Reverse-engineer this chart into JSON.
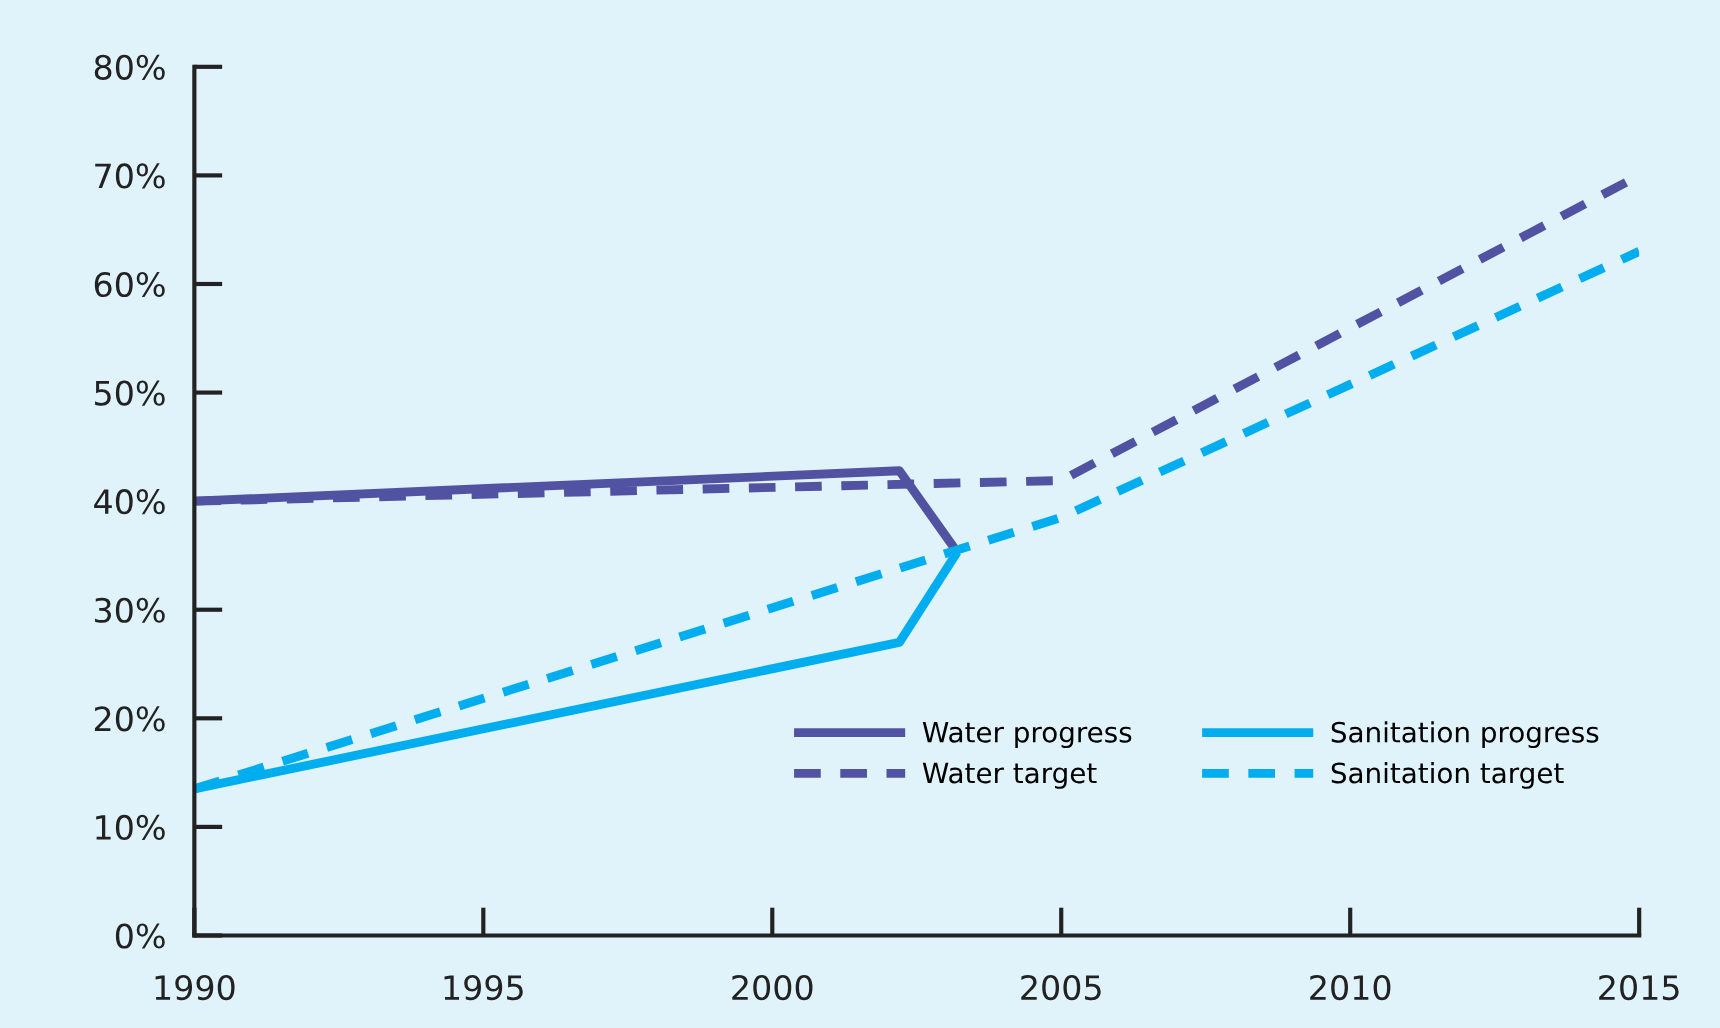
{
  "chart_data": {
    "type": "line",
    "series": [
      {
        "name": "Water progress",
        "color": "#5252a3",
        "line_style": "solid",
        "x": [
          1990,
          2002.2,
          2003.2
        ],
        "values": [
          40,
          42.8,
          35.3
        ]
      },
      {
        "name": "Water target",
        "color": "#5252a3",
        "line_style": "dashed",
        "x": [
          1990,
          2005,
          2015
        ],
        "values": [
          40,
          41.9,
          70
        ]
      },
      {
        "name": "Sanitation progress",
        "color": "#00aeef",
        "line_style": "solid",
        "x": [
          1990,
          2002.2,
          2003.2
        ],
        "values": [
          13.5,
          27,
          35.3
        ]
      },
      {
        "name": "Sanitation target",
        "color": "#00aeef",
        "line_style": "dashed",
        "x": [
          1990,
          2005,
          2015
        ],
        "values": [
          13.5,
          38.5,
          63
        ]
      }
    ],
    "xlim": [
      1990,
      2015
    ],
    "xticks": [
      1990,
      1995,
      2000,
      2005,
      2010,
      2015
    ],
    "ylim": [
      0,
      80
    ],
    "yticks": [
      {
        "value": 0,
        "label": "0%"
      },
      {
        "value": 10,
        "label": "10%"
      },
      {
        "value": 20,
        "label": "20%"
      },
      {
        "value": 30,
        "label": "30%"
      },
      {
        "value": 40,
        "label": "40%"
      },
      {
        "value": 50,
        "label": "50%"
      },
      {
        "value": 60,
        "label": "60%"
      },
      {
        "value": 70,
        "label": "70%"
      },
      {
        "value": 80,
        "label": "80%"
      }
    ],
    "grid": false,
    "legend": "bottom right",
    "marker": "none"
  }
}
